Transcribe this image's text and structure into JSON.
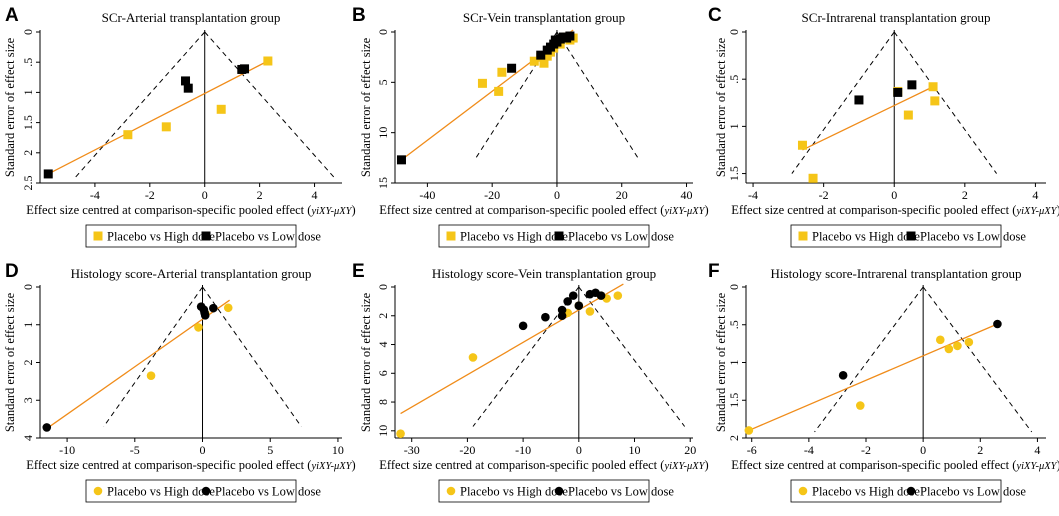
{
  "colors": {
    "high_dose": "#F5C518",
    "low_dose": "#000000",
    "fit_line": "#F08C1A",
    "funnel": "#000000"
  },
  "chart_data": [
    {
      "panel": "A",
      "type": "scatter",
      "title": "SCr-Arterial transplantation group",
      "xlabel_main": "Effect size centred at comparison-specific pooled effect (",
      "xlabel_sub": "yiXY-μXY",
      "xlabel_end": ")",
      "ylabel": "Standard error of effect size",
      "xlim": [
        -6,
        5
      ],
      "ylim": [
        0,
        2.5
      ],
      "y_inverted": true,
      "xticks": [
        -4,
        -2,
        0,
        2,
        4
      ],
      "xtick_labels": [
        "-4",
        "-2",
        "0",
        "2",
        "4"
      ],
      "yticks": [
        0,
        0.5,
        1,
        1.5,
        2,
        2.5
      ],
      "ytick_labels": [
        "0",
        ".5",
        "1",
        "1.5",
        "2",
        "2.5"
      ],
      "marker_shape": "square",
      "funnel": {
        "apex": [
          0,
          0
        ],
        "base_se": 2.4,
        "half_width_at_base": 4.7
      },
      "fit_line": [
        [
          -5.7,
          2.35
        ],
        [
          2.3,
          0.48
        ]
      ],
      "series": [
        {
          "name": "Placebo vs High dose",
          "points": [
            [
              2.3,
              0.48
            ],
            [
              0.6,
              1.28
            ],
            [
              -1.4,
              1.57
            ],
            [
              -2.8,
              1.7
            ]
          ]
        },
        {
          "name": "Placebo vs Low dose",
          "points": [
            [
              -0.7,
              0.81
            ],
            [
              -0.6,
              0.93
            ],
            [
              1.35,
              0.62
            ],
            [
              1.45,
              0.61
            ],
            [
              -5.7,
              2.35
            ]
          ]
        }
      ],
      "legend": [
        "Placebo vs High dose",
        "Placebo vs Low dose"
      ]
    },
    {
      "panel": "B",
      "type": "scatter",
      "title": "SCr-Vein transplantation group",
      "xlabel_main": "Effect size centred at comparison-specific pooled effect (",
      "xlabel_sub": "yiXY-μXY",
      "xlabel_end": ")",
      "ylabel": "Standard error of effect size",
      "xlim": [
        -50,
        42
      ],
      "ylim": [
        0,
        15
      ],
      "y_inverted": true,
      "xticks": [
        -40,
        -20,
        0,
        20,
        40
      ],
      "xtick_labels": [
        "-40",
        "-20",
        "0",
        "20",
        "40"
      ],
      "yticks": [
        0,
        5,
        10,
        15
      ],
      "ytick_labels": [
        "0",
        "5",
        "10",
        "15"
      ],
      "marker_shape": "square",
      "funnel": {
        "apex": [
          0,
          0
        ],
        "base_se": 12.5,
        "half_width_at_base": 25
      },
      "fit_line": [
        [
          -48,
          12.7
        ],
        [
          5,
          -0.2
        ]
      ],
      "series": [
        {
          "name": "Placebo vs High dose",
          "points": [
            [
              -23,
              5.1
            ],
            [
              -18,
              5.9
            ],
            [
              -17,
              4.0
            ],
            [
              -7,
              2.9
            ],
            [
              -5,
              2.5
            ],
            [
              -4,
              3.1
            ],
            [
              -3,
              2.4
            ],
            [
              -2,
              2.0
            ],
            [
              -1,
              1.6
            ],
            [
              0.5,
              0.9
            ],
            [
              2,
              0.6
            ],
            [
              3,
              0.5
            ],
            [
              5,
              0.6
            ],
            [
              4,
              0.8
            ],
            [
              1,
              1.2
            ]
          ]
        },
        {
          "name": "Placebo vs Low dose",
          "points": [
            [
              -48,
              12.7
            ],
            [
              -14,
              3.6
            ],
            [
              -5,
              2.3
            ],
            [
              -3,
              1.8
            ],
            [
              -2,
              1.5
            ],
            [
              -1,
              1.2
            ],
            [
              0,
              1.0
            ],
            [
              1,
              0.7
            ],
            [
              2,
              0.5
            ],
            [
              3,
              0.6
            ],
            [
              4,
              0.4
            ],
            [
              -0.5,
              0.8
            ]
          ]
        }
      ],
      "legend": [
        "Placebo vs High dose",
        "Placebo vs Low dose"
      ]
    },
    {
      "panel": "C",
      "type": "scatter",
      "title": "SCr-Intrarenal transplantation group",
      "xlabel_main": "Effect size centred at comparison-specific pooled effect (",
      "xlabel_sub": "yiXY-μXY",
      "xlabel_end": ")",
      "ylabel": "Standard error of effect size",
      "xlim": [
        -4.2,
        4.3
      ],
      "ylim": [
        0,
        1.6
      ],
      "y_inverted": true,
      "xticks": [
        -4,
        -2,
        0,
        2,
        4
      ],
      "xtick_labels": [
        "-4",
        "-2",
        "0",
        "2",
        "4"
      ],
      "yticks": [
        0,
        0.5,
        1,
        1.5
      ],
      "ytick_labels": [
        "0",
        ".5",
        "1",
        "1.5"
      ],
      "marker_shape": "square",
      "funnel": {
        "apex": [
          0,
          0
        ],
        "base_se": 1.5,
        "half_width_at_base": 2.9
      },
      "fit_line": [
        [
          -2.6,
          1.25
        ],
        [
          1.1,
          0.58
        ]
      ],
      "series": [
        {
          "name": "Placebo vs High dose",
          "points": [
            [
              -2.6,
              1.2
            ],
            [
              -2.3,
              1.55
            ],
            [
              0.1,
              0.63
            ],
            [
              0.4,
              0.88
            ],
            [
              1.1,
              0.58
            ],
            [
              1.15,
              0.73
            ]
          ]
        },
        {
          "name": "Placebo vs Low dose",
          "points": [
            [
              -1.0,
              0.72
            ],
            [
              0.1,
              0.64
            ],
            [
              0.5,
              0.56
            ]
          ]
        }
      ],
      "legend": [
        "Placebo vs High dose",
        "Placebo vs Low dose"
      ]
    },
    {
      "panel": "D",
      "type": "scatter",
      "title": "Histology score-Arterial transplantation group",
      "xlabel_main": "Effect size centred at comparison-specific pooled effect (",
      "xlabel_sub": "yiXY-μXY",
      "xlabel_end": ")",
      "ylabel": "Standard error of effect size",
      "xlim": [
        -12,
        10.3
      ],
      "ylim": [
        0,
        4
      ],
      "y_inverted": true,
      "xticks": [
        -10,
        -5,
        0,
        5,
        10
      ],
      "xtick_labels": [
        "-10",
        "-5",
        "0",
        "5",
        "10"
      ],
      "yticks": [
        0,
        1,
        2,
        3,
        4
      ],
      "ytick_labels": [
        "0",
        "1",
        "2",
        "3",
        "4"
      ],
      "marker_shape": "circle",
      "funnel": {
        "apex": [
          0,
          0
        ],
        "base_se": 3.7,
        "half_width_at_base": 7.3
      },
      "fit_line": [
        [
          -11.5,
          3.75
        ],
        [
          2.0,
          0.35
        ]
      ],
      "series": [
        {
          "name": "Placebo vs High dose",
          "points": [
            [
              1.9,
              0.55
            ],
            [
              -0.3,
              1.07
            ],
            [
              -3.8,
              2.35
            ],
            [
              0.2,
              0.7
            ]
          ]
        },
        {
          "name": "Placebo vs Low dose",
          "points": [
            [
              -0.1,
              0.52
            ],
            [
              0.1,
              0.6
            ],
            [
              0.15,
              0.68
            ],
            [
              0.2,
              0.75
            ],
            [
              0.8,
              0.56
            ],
            [
              -11.5,
              3.72
            ]
          ]
        }
      ],
      "legend": [
        "Placebo vs High dose",
        "Placebo vs Low dose"
      ]
    },
    {
      "panel": "E",
      "type": "scatter",
      "title": "Histology score-Vein transplantation group",
      "xlabel_main": "Effect size centred at comparison-specific pooled effect (",
      "xlabel_sub": "yiXY-μXY",
      "xlabel_end": ")",
      "ylabel": "Standard error of effect size",
      "xlim": [
        -33,
        20.5
      ],
      "ylim": [
        0,
        10.5
      ],
      "y_inverted": true,
      "xticks": [
        -30,
        -20,
        -10,
        0,
        10,
        20
      ],
      "xtick_labels": [
        "-30",
        "-20",
        "-10",
        "0",
        "10",
        "20"
      ],
      "yticks": [
        0,
        2,
        4,
        6,
        8,
        10
      ],
      "ytick_labels": [
        "0",
        "2",
        "4",
        "6",
        "8",
        "10"
      ],
      "marker_shape": "circle",
      "funnel": {
        "apex": [
          0,
          0
        ],
        "base_se": 9.7,
        "half_width_at_base": 19
      },
      "fit_line": [
        [
          -32,
          8.8
        ],
        [
          8,
          -0.2
        ]
      ],
      "series": [
        {
          "name": "Placebo vs High dose",
          "points": [
            [
              -32,
              10.2
            ],
            [
              -19,
              4.9
            ],
            [
              2,
              1.7
            ],
            [
              4,
              0.6
            ],
            [
              5,
              0.8
            ],
            [
              7,
              0.6
            ],
            [
              -2,
              1.8
            ],
            [
              0,
              1.3
            ]
          ]
        },
        {
          "name": "Placebo vs Low dose",
          "points": [
            [
              -10,
              2.7
            ],
            [
              -6,
              2.1
            ],
            [
              -3,
              2.0
            ],
            [
              -3,
              1.6
            ],
            [
              -2,
              1.0
            ],
            [
              0,
              1.3
            ],
            [
              2,
              0.5
            ],
            [
              3,
              0.4
            ],
            [
              4,
              0.6
            ],
            [
              -1,
              0.6
            ]
          ]
        }
      ],
      "legend": [
        "Placebo vs High dose",
        "Placebo vs Low dose"
      ]
    },
    {
      "panel": "F",
      "type": "scatter",
      "title": "Histology score-Intrarenal transplantation group",
      "xlabel_main": "Effect size centred at comparison-specific pooled effect (",
      "xlabel_sub": "yiXY-μXY",
      "xlabel_end": ")",
      "ylabel": "Standard error of effect size",
      "xlim": [
        -6.2,
        4.3
      ],
      "ylim": [
        0,
        2
      ],
      "y_inverted": true,
      "xticks": [
        -6,
        -4,
        -2,
        0,
        2,
        4
      ],
      "xtick_labels": [
        "-6",
        "-4",
        "-2",
        "0",
        "2",
        "4"
      ],
      "yticks": [
        0,
        0.5,
        1,
        1.5,
        2
      ],
      "ytick_labels": [
        "0",
        ".5",
        "1",
        "1.5",
        "2"
      ],
      "marker_shape": "circle",
      "funnel": {
        "apex": [
          0,
          0
        ],
        "base_se": 1.92,
        "half_width_at_base": 3.8
      },
      "fit_line": [
        [
          -6.1,
          1.9
        ],
        [
          2.6,
          0.49
        ]
      ],
      "series": [
        {
          "name": "Placebo vs High dose",
          "points": [
            [
              -6.1,
              1.9
            ],
            [
              -2.2,
              1.57
            ],
            [
              0.6,
              0.7
            ],
            [
              0.9,
              0.82
            ],
            [
              1.2,
              0.78
            ],
            [
              1.6,
              0.73
            ]
          ]
        },
        {
          "name": "Placebo vs Low dose",
          "points": [
            [
              -2.8,
              1.17
            ],
            [
              2.6,
              0.49
            ]
          ]
        }
      ],
      "legend": [
        "Placebo vs High dose",
        "Placebo vs Low dose"
      ]
    }
  ]
}
